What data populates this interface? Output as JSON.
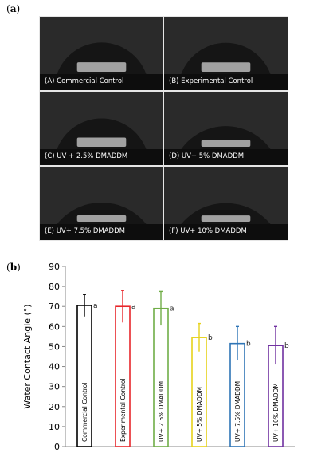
{
  "panel_a": {
    "label_open": "(",
    "label_letter": "a",
    "label_close": ")",
    "images": [
      {
        "caption": "(A) Commercial Control",
        "angle": 70.5
      },
      {
        "caption": "(B) Experimental Control",
        "angle": 70
      },
      {
        "caption": "(C) UV + 2.5% DMADDM",
        "angle": 69
      },
      {
        "caption": "(D) UV+ 5% DMADDM",
        "angle": 54.5
      },
      {
        "caption": "(E) UV+ 7.5% DMADDM",
        "angle": 51.5
      },
      {
        "caption": "(F) UV+ 10% DMADDM",
        "angle": 50.5
      }
    ]
  },
  "panel_b": {
    "label_open": "(",
    "label_letter": "b",
    "label_close": ")"
  },
  "chart_data": {
    "type": "bar",
    "title": "",
    "xlabel": "",
    "ylabel": "Water Contact Angle (°)",
    "ylim": [
      0,
      90
    ],
    "yticks": [
      0,
      10,
      20,
      30,
      40,
      50,
      60,
      70,
      80,
      90
    ],
    "grid": false,
    "categories": [
      "Commercial Control",
      "Experimental Control",
      "UV+ 2.5% DMADDM",
      "UV+ 5% DMADDM",
      "UV+ 7.5% DMADDM",
      "UV+ 10% DMADDM"
    ],
    "values": [
      70.5,
      70,
      69,
      54.5,
      51.5,
      50.5
    ],
    "errors": [
      5.5,
      8,
      8.5,
      7,
      8.5,
      9.5
    ],
    "significance": [
      "a",
      "a",
      "a",
      "b",
      "b",
      "b"
    ],
    "colors": [
      "#000000",
      "#e8262b",
      "#70ad47",
      "#e6d21a",
      "#2e75b6",
      "#7030a0"
    ]
  }
}
